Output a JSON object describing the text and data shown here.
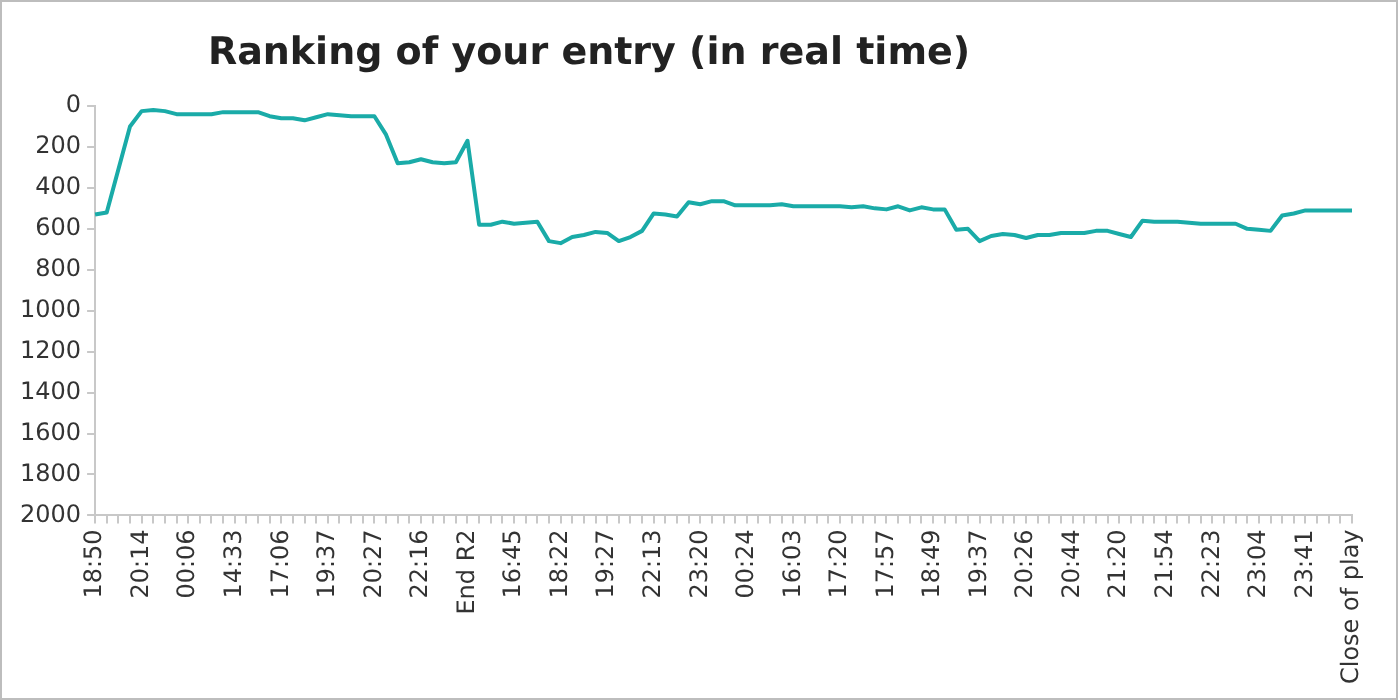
{
  "chart_data": {
    "type": "line",
    "title": "Ranking of your entry (in real time)",
    "categories": [
      "18:50",
      null,
      null,
      null,
      "20:14",
      null,
      null,
      null,
      "00:06",
      null,
      null,
      null,
      "14:33",
      null,
      null,
      null,
      "17:06",
      null,
      null,
      null,
      "19:37",
      null,
      null,
      null,
      "20:27",
      null,
      null,
      null,
      "22:16",
      null,
      null,
      null,
      "End R2",
      null,
      null,
      null,
      "16:45",
      null,
      null,
      null,
      "18:22",
      null,
      null,
      null,
      "19:27",
      null,
      null,
      null,
      "22:13",
      null,
      null,
      null,
      "23:20",
      null,
      null,
      null,
      "00:24",
      null,
      null,
      null,
      "16:03",
      null,
      null,
      null,
      "17:20",
      null,
      null,
      null,
      "17:57",
      null,
      null,
      null,
      "18:49",
      null,
      null,
      null,
      "19:37",
      null,
      null,
      null,
      "20:26",
      null,
      null,
      null,
      "20:44",
      null,
      null,
      null,
      "21:20",
      null,
      null,
      null,
      "21:54",
      null,
      null,
      null,
      "22:23",
      null,
      null,
      null,
      "23:04",
      null,
      null,
      null,
      "23:41",
      null,
      null,
      null,
      "Close of play"
    ],
    "series": [
      {
        "color": "#1aaba8",
        "values": [
          530,
          520,
          310,
          100,
          25,
          20,
          25,
          40,
          40,
          40,
          40,
          30,
          30,
          30,
          30,
          50,
          60,
          60,
          70,
          55,
          40,
          45,
          50,
          50,
          50,
          140,
          280,
          275,
          260,
          275,
          280,
          275,
          170,
          580,
          580,
          565,
          575,
          570,
          565,
          660,
          670,
          640,
          630,
          615,
          620,
          660,
          640,
          610,
          525,
          530,
          540,
          470,
          480,
          465,
          465,
          485,
          485,
          485,
          485,
          480,
          490,
          490,
          490,
          490,
          490,
          495,
          490,
          500,
          505,
          490,
          510,
          495,
          505,
          505,
          605,
          600,
          660,
          635,
          625,
          630,
          645,
          630,
          630,
          620,
          620,
          620,
          610,
          610,
          625,
          640,
          560,
          565,
          565,
          565,
          570,
          575,
          575,
          575,
          575,
          600,
          605,
          610,
          535,
          525,
          510,
          510,
          510,
          510,
          510
        ]
      }
    ],
    "ylim": [
      2000,
      0
    ],
    "yticks": [
      0,
      200,
      400,
      600,
      800,
      1000,
      1200,
      1400,
      1600,
      1800,
      2000
    ],
    "marker": "none",
    "legend": false
  }
}
